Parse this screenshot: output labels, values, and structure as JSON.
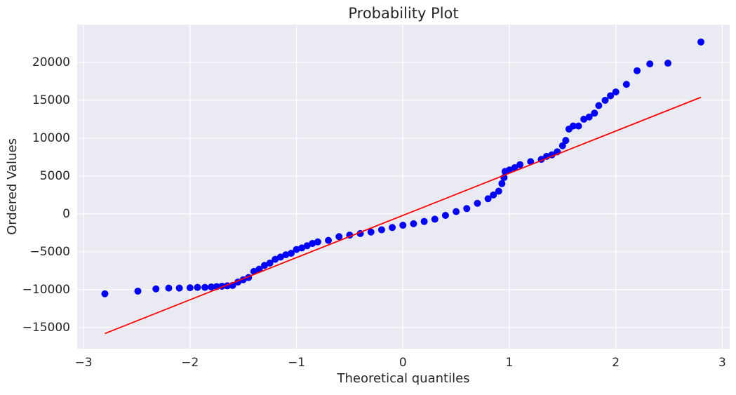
{
  "chart_data": {
    "type": "scatter",
    "title": "Probability Plot",
    "x_label": "Theoretical quantiles",
    "y_label": "Ordered Values",
    "xlim": [
      -3.06,
      3.07
    ],
    "ylim": [
      -17800,
      25000
    ],
    "xticks": [
      {
        "value": -3,
        "label": "−3"
      },
      {
        "value": -2,
        "label": "−2"
      },
      {
        "value": -1,
        "label": "−1"
      },
      0,
      1,
      2,
      3
    ],
    "yticks": [
      {
        "value": -15000,
        "label": "−15000"
      },
      {
        "value": -10000,
        "label": "−10000"
      },
      {
        "value": -5000,
        "label": "−5000"
      },
      0,
      5000,
      10000,
      15000,
      20000
    ],
    "grid": true,
    "series": [
      {
        "mode": "markers",
        "color": "#0000ff",
        "x": [
          -2.8,
          -2.49,
          -2.32,
          -2.2,
          -2.1,
          -2.0,
          -1.93,
          -1.86,
          -1.8,
          -1.75,
          -1.7,
          -1.65,
          -1.6,
          -1.55,
          -1.5,
          -1.45,
          -1.4,
          -1.35,
          -1.3,
          -1.25,
          -1.2,
          -1.15,
          -1.1,
          -1.05,
          -1.0,
          -0.95,
          -0.9,
          -0.85,
          -0.8,
          -0.7,
          -0.6,
          -0.5,
          -0.4,
          -0.3,
          -0.2,
          -0.1,
          0.0,
          0.1,
          0.2,
          0.3,
          0.4,
          0.5,
          0.6,
          0.7,
          0.8,
          0.85,
          0.9,
          0.93,
          0.95,
          0.96,
          1.0,
          1.05,
          1.1,
          1.2,
          1.3,
          1.35,
          1.4,
          1.45,
          1.5,
          1.53,
          1.56,
          1.6,
          1.65,
          1.7,
          1.75,
          1.8,
          1.84,
          1.9,
          1.95,
          2.0,
          2.1,
          2.2,
          2.32,
          2.49,
          2.8
        ],
        "values": [
          -10550,
          -10200,
          -9900,
          -9800,
          -9800,
          -9750,
          -9700,
          -9700,
          -9650,
          -9600,
          -9550,
          -9500,
          -9450,
          -9000,
          -8700,
          -8400,
          -7600,
          -7300,
          -6800,
          -6500,
          -6000,
          -5700,
          -5400,
          -5200,
          -4700,
          -4500,
          -4200,
          -3900,
          -3700,
          -3500,
          -3000,
          -2800,
          -2600,
          -2400,
          -2100,
          -1800,
          -1500,
          -1300,
          -1000,
          -700,
          -200,
          300,
          700,
          1400,
          2000,
          2500,
          3000,
          4000,
          4800,
          5600,
          5800,
          6100,
          6500,
          6900,
          7200,
          7600,
          7800,
          8200,
          9000,
          9700,
          11200,
          11600,
          11600,
          12500,
          12800,
          13300,
          14300,
          15000,
          15600,
          16100,
          17100,
          18900,
          19800,
          19900,
          22700
        ]
      },
      {
        "mode": "line",
        "color": "#ff0000",
        "x": [
          -2.8,
          2.8
        ],
        "values": [
          -15800,
          15400
        ]
      }
    ]
  }
}
